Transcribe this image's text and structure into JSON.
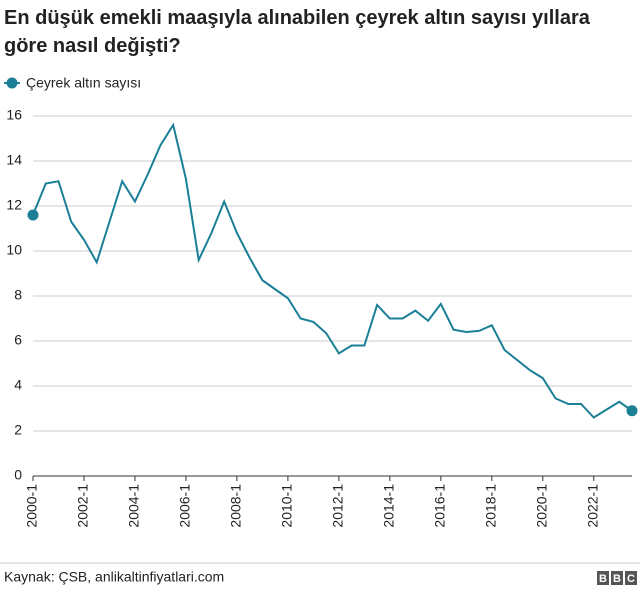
{
  "chart_data": {
    "type": "line",
    "title": "En düşük emekli maaşıyla alınabilen çeyrek altın sayısı yıllara göre nasıl değişti?",
    "categories": [
      "2000-1",
      null,
      null,
      null,
      "2002-1",
      null,
      null,
      null,
      "2004-1",
      null,
      null,
      null,
      "2006-1",
      null,
      null,
      null,
      "2008-1",
      null,
      null,
      null,
      "2010-1",
      null,
      null,
      null,
      "2012-1",
      null,
      null,
      null,
      "2014-1",
      null,
      null,
      null,
      "2016-1",
      null,
      null,
      null,
      "2018-1",
      null,
      null,
      null,
      "2020-1",
      null,
      null,
      null,
      "2022-1",
      null,
      null,
      null
    ],
    "series": [
      {
        "name": "Çeyrek altın sayısı",
        "color": "#1b7f96",
        "values": [
          11.6,
          13.0,
          13.1,
          11.3,
          10.5,
          9.5,
          11.3,
          13.1,
          12.2,
          13.4,
          14.7,
          15.6,
          13.2,
          9.6,
          10.8,
          12.2,
          10.8,
          9.7,
          8.7,
          8.3,
          7.9,
          7.0,
          6.85,
          6.35,
          5.45,
          5.8,
          5.8,
          7.6,
          7.0,
          7.0,
          7.35,
          6.9,
          7.65,
          6.5,
          6.4,
          6.45,
          6.7,
          5.6,
          5.15,
          4.7,
          4.35,
          3.45,
          3.2,
          3.2,
          2.6,
          2.95,
          3.3,
          2.9
        ]
      }
    ],
    "ylim": [
      0,
      16
    ],
    "yticks": [
      0,
      2,
      4,
      6,
      8,
      10,
      12,
      14,
      16
    ],
    "grid": true,
    "source": "Kaynak: ÇSB, anlikaltinfiyatlari.com",
    "logo": [
      "B",
      "B",
      "C"
    ]
  }
}
